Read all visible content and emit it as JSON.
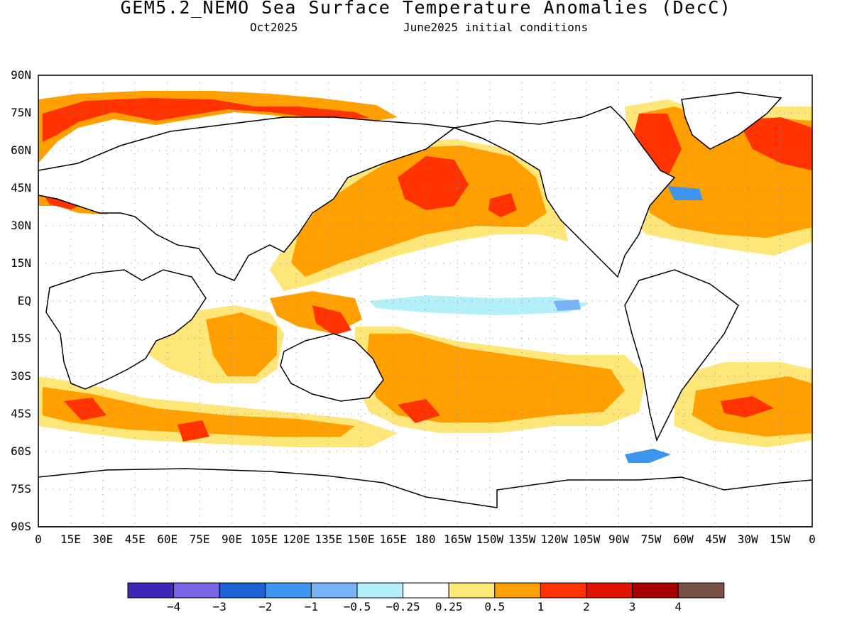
{
  "title": "GEM5.2_NEMO Sea Surface Temperature Anomalies (DecC)",
  "subtitle_left": "Oct2025",
  "subtitle_right": "June2025 initial conditions",
  "lat_labels": [
    "90N",
    "75N",
    "60N",
    "45N",
    "30N",
    "15N",
    "EQ",
    "15S",
    "30S",
    "45S",
    "60S",
    "75S",
    "90S"
  ],
  "lon_labels": [
    "0",
    "15E",
    "30E",
    "45E",
    "60E",
    "75E",
    "90E",
    "105E",
    "120E",
    "135E",
    "150E",
    "165E",
    "180",
    "165W",
    "150W",
    "135W",
    "120W",
    "105W",
    "90W",
    "75W",
    "60W",
    "45W",
    "30W",
    "15W",
    "0"
  ],
  "colorbar": {
    "colors": [
      "#3c28b4",
      "#7866e6",
      "#1e5fd2",
      "#3c96f0",
      "#78b4f5",
      "#b4f0fa",
      "#ffffff",
      "#ffe678",
      "#ffa000",
      "#ff3200",
      "#e11400",
      "#a50000",
      "#785046"
    ],
    "labels": [
      "-4",
      "-3",
      "-2",
      "-1",
      "-0.5",
      "-0.25",
      "0.25",
      "0.5",
      "1",
      "2",
      "3",
      "4"
    ]
  }
}
